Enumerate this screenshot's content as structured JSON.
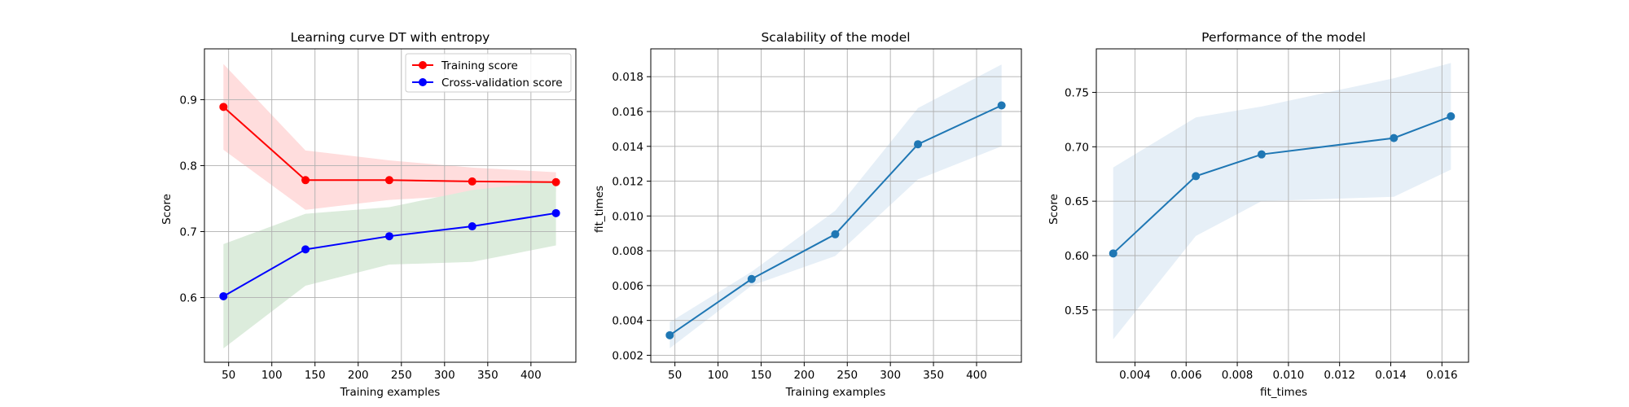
{
  "chart_data": [
    {
      "type": "line",
      "title": "Learning curve DT with entropy",
      "xlabel": "Training examples",
      "ylabel": "Score",
      "xlim": [
        22,
        452
      ],
      "ylim": [
        0.502,
        0.977
      ],
      "xticks": [
        50,
        100,
        150,
        200,
        250,
        300,
        350,
        400
      ],
      "yticks": [
        0.6,
        0.7,
        0.8,
        0.9
      ],
      "grid": true,
      "legend": "top-right",
      "x": [
        44,
        139,
        236,
        332,
        429
      ],
      "series": [
        {
          "name": "Training score",
          "color": "#ff0000",
          "fill": "#ffdddd",
          "values": [
            0.889,
            0.778,
            0.778,
            0.776,
            0.775
          ],
          "lower": [
            0.824,
            0.733,
            0.748,
            0.755,
            0.76
          ],
          "upper": [
            0.954,
            0.823,
            0.808,
            0.797,
            0.79
          ]
        },
        {
          "name": "Cross-validation score",
          "color": "#0000ff",
          "fill": "#dcecdc",
          "values": [
            0.602,
            0.673,
            0.693,
            0.708,
            0.728
          ],
          "lower": [
            0.523,
            0.618,
            0.65,
            0.654,
            0.679
          ],
          "upper": [
            0.681,
            0.727,
            0.737,
            0.763,
            0.777
          ]
        }
      ]
    },
    {
      "type": "line",
      "title": "Scalability of the model",
      "xlabel": "Training examples",
      "ylabel": "fit_times",
      "xlim": [
        22,
        452
      ],
      "ylim": [
        0.0016,
        0.0196
      ],
      "xticks": [
        50,
        100,
        150,
        200,
        250,
        300,
        350,
        400
      ],
      "yticks": [
        0.002,
        0.004,
        0.006,
        0.008,
        0.01,
        0.012,
        0.014,
        0.016,
        0.018
      ],
      "yticklabels": [
        "0.002",
        "0.004",
        "0.006",
        "0.008",
        "0.010",
        "0.012",
        "0.014",
        "0.016",
        "0.018"
      ],
      "grid": true,
      "x": [
        44,
        139,
        236,
        332,
        429
      ],
      "series": [
        {
          "color": "#1f77b4",
          "fill": "#e6eff7",
          "values": [
            0.00315,
            0.00638,
            0.00895,
            0.01412,
            0.01635
          ],
          "lower": [
            0.0024,
            0.006,
            0.0077,
            0.0121,
            0.014
          ],
          "upper": [
            0.0039,
            0.0068,
            0.0103,
            0.0162,
            0.0187
          ]
        }
      ]
    },
    {
      "type": "line",
      "title": "Performance of the model",
      "xlabel": "fit_times",
      "ylabel": "Score",
      "xlim": [
        0.00249,
        0.01704
      ],
      "ylim": [
        0.502,
        0.79
      ],
      "xticks": [
        0.004,
        0.006,
        0.008,
        0.01,
        0.012,
        0.014,
        0.016
      ],
      "xticklabels": [
        "0.004",
        "0.006",
        "0.008",
        "0.010",
        "0.012",
        "0.014",
        "0.016"
      ],
      "yticks": [
        0.55,
        0.6,
        0.65,
        0.7,
        0.75
      ],
      "yticklabels": [
        "0.55",
        "0.60",
        "0.65",
        "0.70",
        "0.75"
      ],
      "grid": true,
      "x": [
        0.00315,
        0.00638,
        0.00895,
        0.01412,
        0.01635
      ],
      "series": [
        {
          "color": "#1f77b4",
          "fill": "#e6eff7",
          "values": [
            0.602,
            0.673,
            0.693,
            0.708,
            0.728
          ],
          "lower": [
            0.523,
            0.618,
            0.65,
            0.654,
            0.679
          ],
          "upper": [
            0.681,
            0.727,
            0.737,
            0.763,
            0.777
          ]
        }
      ]
    }
  ]
}
